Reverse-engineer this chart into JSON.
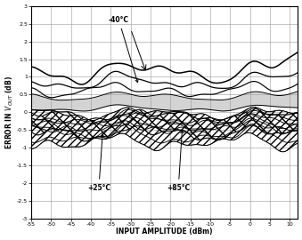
{
  "title": "",
  "xlabel": "INPUT AMPLITUDE (dBm)",
  "xlim": [
    -55,
    12
  ],
  "ylim": [
    -3.0,
    3.0
  ],
  "xticks": [
    -55,
    -50,
    -45,
    -40,
    -35,
    -30,
    -25,
    -20,
    -15,
    -10,
    -5,
    0,
    5,
    10
  ],
  "yticks": [
    -3.0,
    -2.5,
    -2.0,
    -1.5,
    -1.0,
    -0.5,
    0,
    0.5,
    1.0,
    1.5,
    2.0,
    2.5,
    3.0
  ],
  "bg_color": "#ffffff",
  "annotation_40C": "-40°C",
  "annotation_25C": "+25°C",
  "annotation_85C": "+85°C"
}
